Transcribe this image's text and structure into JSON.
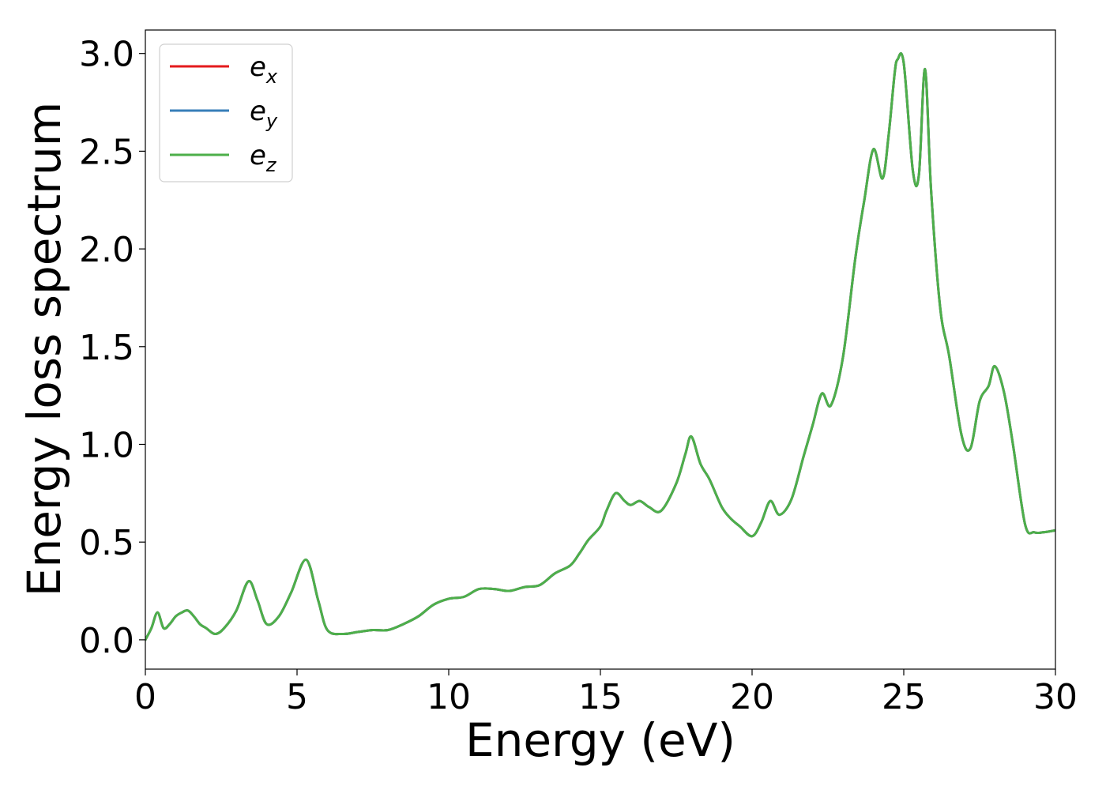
{
  "chart_data": {
    "type": "line",
    "xlabel": "Energy (eV)",
    "ylabel": "Energy loss spectrum",
    "xlim": [
      0,
      30
    ],
    "ylim": [
      -0.15,
      3.12
    ],
    "x_ticks": [
      "0",
      "5",
      "10",
      "15",
      "20",
      "25",
      "30"
    ],
    "y_ticks": [
      "0.0",
      "0.5",
      "1.0",
      "1.5",
      "2.0",
      "2.5",
      "3.0"
    ],
    "grid": false,
    "legend_position": "top-left",
    "series": [
      {
        "name": "e",
        "subscript": "x",
        "color": "#e41a1c"
      },
      {
        "name": "e",
        "subscript": "y",
        "color": "#377eb8"
      },
      {
        "name": "e",
        "subscript": "z",
        "color": "#4daf4a"
      }
    ],
    "x": [
      0,
      0.2,
      0.4,
      0.6,
      0.8,
      1.0,
      1.2,
      1.4,
      1.6,
      1.8,
      2.0,
      2.3,
      2.6,
      3.0,
      3.4,
      3.7,
      4.0,
      4.4,
      4.8,
      5.3,
      5.7,
      6.0,
      6.5,
      7.0,
      7.5,
      8.0,
      8.5,
      9.0,
      9.5,
      10.0,
      10.5,
      11.0,
      11.5,
      12.0,
      12.5,
      13.0,
      13.5,
      14.0,
      14.3,
      14.6,
      15.0,
      15.2,
      15.5,
      15.8,
      16.0,
      16.3,
      16.6,
      17.0,
      17.5,
      17.8,
      18.0,
      18.3,
      18.6,
      19.0,
      19.3,
      19.6,
      20.0,
      20.3,
      20.6,
      20.9,
      21.3,
      21.7,
      22.0,
      22.3,
      22.6,
      23.0,
      23.4,
      23.7,
      24.0,
      24.3,
      24.5,
      24.7,
      24.8,
      25.0,
      25.3,
      25.5,
      25.7,
      25.9,
      26.2,
      26.5,
      26.9,
      27.2,
      27.5,
      27.8,
      28.0,
      28.3,
      28.6,
      29.0,
      29.3,
      29.6,
      30.0
    ],
    "values": [
      0.0,
      0.06,
      0.14,
      0.06,
      0.08,
      0.12,
      0.14,
      0.15,
      0.12,
      0.08,
      0.06,
      0.03,
      0.06,
      0.15,
      0.3,
      0.2,
      0.08,
      0.12,
      0.24,
      0.41,
      0.2,
      0.05,
      0.03,
      0.04,
      0.05,
      0.05,
      0.08,
      0.12,
      0.18,
      0.21,
      0.22,
      0.26,
      0.26,
      0.25,
      0.27,
      0.28,
      0.34,
      0.38,
      0.44,
      0.51,
      0.58,
      0.66,
      0.75,
      0.71,
      0.69,
      0.71,
      0.68,
      0.66,
      0.8,
      0.95,
      1.04,
      0.9,
      0.82,
      0.68,
      0.62,
      0.58,
      0.53,
      0.6,
      0.71,
      0.64,
      0.72,
      0.94,
      1.1,
      1.26,
      1.2,
      1.45,
      1.95,
      2.25,
      2.51,
      2.36,
      2.58,
      2.9,
      2.97,
      2.95,
      2.4,
      2.38,
      2.92,
      2.3,
      1.7,
      1.45,
      1.05,
      0.98,
      1.22,
      1.3,
      1.4,
      1.27,
      1.0,
      0.59,
      0.55,
      0.55,
      0.56
    ]
  }
}
